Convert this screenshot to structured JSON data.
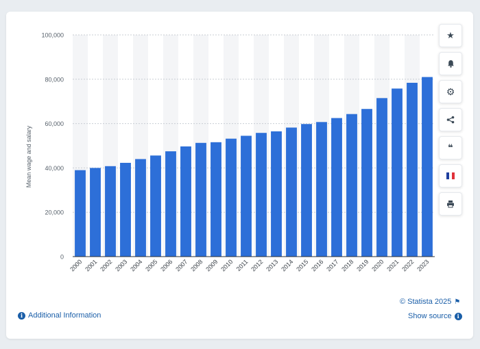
{
  "chart_data": {
    "type": "bar",
    "categories": [
      "2000",
      "2001",
      "2002",
      "2003",
      "2004",
      "2005",
      "2006",
      "2007",
      "2008",
      "2009",
      "2010",
      "2011",
      "2012",
      "2013",
      "2014",
      "2015",
      "2016",
      "2017",
      "2018",
      "2019",
      "2020",
      "2021",
      "2022",
      "2023"
    ],
    "values": [
      39000,
      40000,
      40800,
      42300,
      44000,
      45600,
      47500,
      49700,
      51300,
      51600,
      53200,
      54500,
      55800,
      56500,
      58200,
      59800,
      60700,
      62500,
      64300,
      66600,
      71500,
      75800,
      78400,
      81000
    ],
    "title": "",
    "xlabel": "",
    "ylabel": "Mean wage and salary",
    "ylim": [
      0,
      100000
    ],
    "yticks": [
      0,
      20000,
      40000,
      60000,
      80000,
      100000
    ],
    "ytick_labels": [
      "0",
      "20,000",
      "40,000",
      "60,000",
      "80,000",
      "100,000"
    ],
    "bar_color": "#2d6fd8",
    "grid": true
  },
  "toolbar": {
    "buttons": [
      {
        "icon": "star-icon",
        "glyph": "★"
      },
      {
        "icon": "bell-icon",
        "glyph": "🔔"
      },
      {
        "icon": "gear-icon",
        "glyph": "⚙"
      },
      {
        "icon": "share-icon",
        "glyph": "⋖"
      },
      {
        "icon": "quote-icon",
        "glyph": "❝"
      },
      {
        "icon": "france-flag-icon",
        "glyph": ""
      },
      {
        "icon": "print-icon",
        "glyph": "⎙"
      }
    ]
  },
  "footer": {
    "copyright": "© Statista 2025",
    "additional_info": "Additional Information",
    "show_source": "Show source"
  }
}
